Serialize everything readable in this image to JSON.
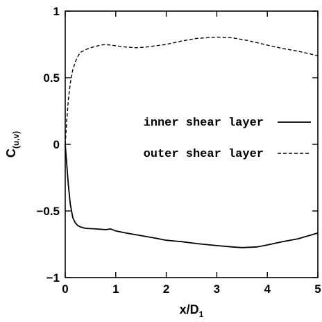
{
  "chart_data": {
    "type": "line",
    "xlabel": "x/D",
    "xlabel_sub": "1",
    "ylabel": "C",
    "ylabel_sub": "(u,v)",
    "xlim": [
      0,
      5
    ],
    "ylim": [
      -1,
      1
    ],
    "x_ticks": [
      0,
      1,
      2,
      3,
      4,
      5
    ],
    "x_tick_labels": [
      "0",
      "1",
      "2",
      "3",
      "4",
      "5"
    ],
    "y_ticks": [
      -1,
      -0.5,
      0,
      0.5,
      1
    ],
    "y_tick_labels": [
      "−1",
      "−0.5",
      "0",
      "0.5",
      "1"
    ],
    "grid": false,
    "legend_position": "center-right",
    "series": [
      {
        "name": "inner shear layer",
        "style": "solid",
        "color": "#000000",
        "x": [
          0,
          0.03,
          0.06,
          0.1,
          0.15,
          0.2,
          0.25,
          0.3,
          0.4,
          0.6,
          0.8,
          0.9,
          1.0,
          1.2,
          1.5,
          1.8,
          2.0,
          2.3,
          2.6,
          3.0,
          3.3,
          3.5,
          3.8,
          4.0,
          4.3,
          4.6,
          5.0
        ],
        "y": [
          0,
          -0.15,
          -0.3,
          -0.45,
          -0.55,
          -0.59,
          -0.61,
          -0.62,
          -0.63,
          -0.635,
          -0.64,
          -0.635,
          -0.65,
          -0.665,
          -0.685,
          -0.705,
          -0.72,
          -0.73,
          -0.745,
          -0.76,
          -0.77,
          -0.775,
          -0.77,
          -0.755,
          -0.73,
          -0.71,
          -0.665
        ]
      },
      {
        "name": "outer shear layer",
        "style": "dashed",
        "color": "#000000",
        "x": [
          0,
          0.03,
          0.06,
          0.1,
          0.15,
          0.2,
          0.25,
          0.3,
          0.4,
          0.5,
          0.6,
          0.7,
          0.8,
          0.9,
          1.0,
          1.2,
          1.4,
          1.6,
          1.8,
          2.0,
          2.3,
          2.6,
          3.0,
          3.3,
          3.6,
          4.0,
          4.3,
          4.6,
          5.0
        ],
        "y": [
          0,
          0.18,
          0.33,
          0.46,
          0.56,
          0.62,
          0.66,
          0.69,
          0.71,
          0.725,
          0.735,
          0.745,
          0.75,
          0.745,
          0.74,
          0.73,
          0.725,
          0.73,
          0.74,
          0.75,
          0.775,
          0.795,
          0.805,
          0.8,
          0.78,
          0.745,
          0.72,
          0.7,
          0.665
        ]
      }
    ]
  }
}
